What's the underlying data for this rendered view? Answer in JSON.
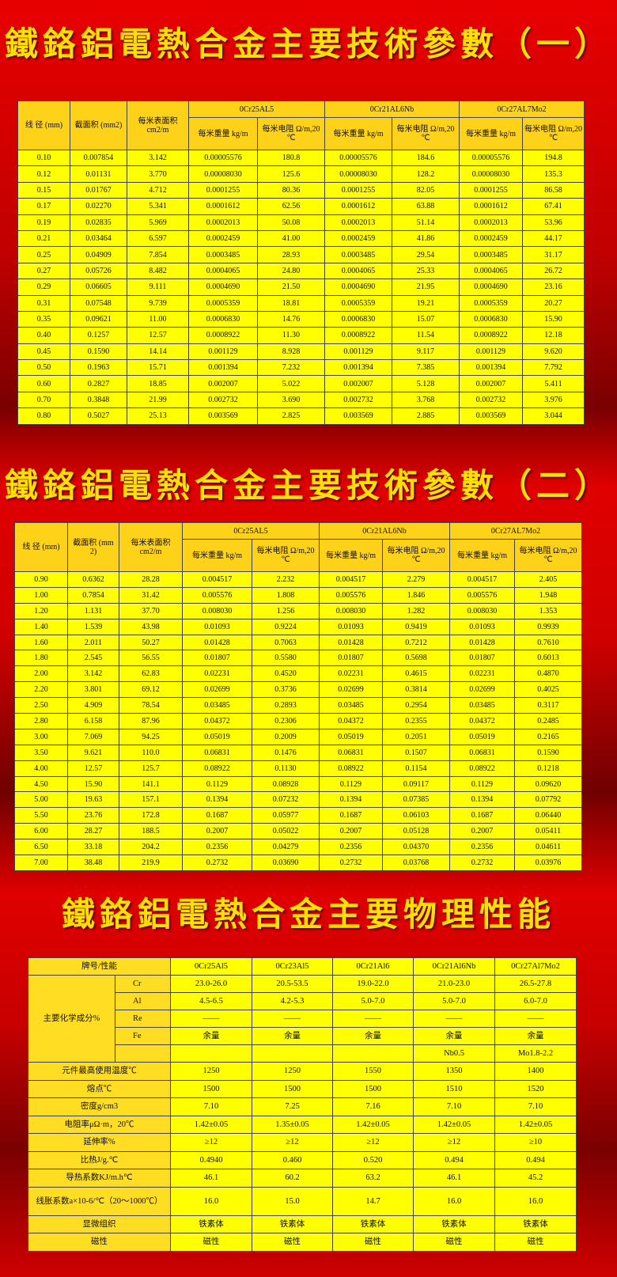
{
  "params1": {
    "title": "鐵鉻鋁電熱合金主要技術參數（一）",
    "columns": {
      "diameter": "线 径 (mm)",
      "area": "截面积 (mm2)",
      "surface": "每米表面积 cm2/m"
    },
    "alloys": [
      {
        "name": "0Cr25AL5",
        "weight": "每米重量 kg/m",
        "resistance": "每米电阻 Ω/m,20 ℃"
      },
      {
        "name": "0Cr21AL6Nb",
        "weight": "每米重量 kg/m",
        "resistance": "每米电阻 Ω/m,20 ℃"
      },
      {
        "name": "0Cr27AL7Mo2",
        "weight": "每米重量 kg/m",
        "resistance": "每米电阻 Ω/m,20 ℃"
      }
    ],
    "rows": [
      [
        "0.10",
        "0.007854",
        "3.142",
        "0.00005576",
        "180.8",
        "0.00005576",
        "184.6",
        "0.00005576",
        "194.8"
      ],
      [
        "0.12",
        "0.01131",
        "3.770",
        "0.00008030",
        "125.6",
        "0.00008030",
        "128.2",
        "0.00008030",
        "135.3"
      ],
      [
        "0.15",
        "0.01767",
        "4.712",
        "0.0001255",
        "80.36",
        "0.0001255",
        "82.05",
        "0.0001255",
        "86.58"
      ],
      [
        "0.17",
        "0.02270",
        "5.341",
        "0.0001612",
        "62.56",
        "0.0001612",
        "63.88",
        "0.0001612",
        "67.41"
      ],
      [
        "0.19",
        "0.02835",
        "5.969",
        "0.0002013",
        "50.08",
        "0.0002013",
        "51.14",
        "0.0002013",
        "53.96"
      ],
      [
        "0.21",
        "0.03464",
        "6.597",
        "0.0002459",
        "41.00",
        "0.0002459",
        "41.86",
        "0.0002459",
        "44.17"
      ],
      [
        "0.25",
        "0.04909",
        "7.854",
        "0.0003485",
        "28.93",
        "0.0003485",
        "29.54",
        "0.0003485",
        "31.17"
      ],
      [
        "0.27",
        "0.05726",
        "8.482",
        "0.0004065",
        "24.80",
        "0.0004065",
        "25.33",
        "0.0004065",
        "26.72"
      ],
      [
        "0.29",
        "0.06605",
        "9.111",
        "0.0004690",
        "21.50",
        "0.0004690",
        "21.95",
        "0.0004690",
        "23.16"
      ],
      [
        "0.31",
        "0.07548",
        "9.739",
        "0.0005359",
        "18.81",
        "0.0005359",
        "19.21",
        "0.0005359",
        "20.27"
      ],
      [
        "0.35",
        "0.09621",
        "11.00",
        "0.0006830",
        "14.76",
        "0.0006830",
        "15.07",
        "0.0006830",
        "15.90"
      ],
      [
        "0.40",
        "0.1257",
        "12.57",
        "0.0008922",
        "11.30",
        "0.0008922",
        "11.54",
        "0.0008922",
        "12.18"
      ],
      [
        "0.45",
        "0.1590",
        "14.14",
        "0.001129",
        "8.928",
        "0.001129",
        "9.117",
        "0.001129",
        "9.620"
      ],
      [
        "0.50",
        "0.1963",
        "15.71",
        "0.001394",
        "7.232",
        "0.001394",
        "7.385",
        "0.001394",
        "7.792"
      ],
      [
        "0.60",
        "0.2827",
        "18.85",
        "0.002007",
        "5.022",
        "0.002007",
        "5.128",
        "0.002007",
        "5.411"
      ],
      [
        "0.70",
        "0.3848",
        "21.99",
        "0.002732",
        "3.690",
        "0.002732",
        "3.768",
        "0.002732",
        "3.976"
      ],
      [
        "0.80",
        "0.5027",
        "25.13",
        "0.003569",
        "2.825",
        "0.003569",
        "2.885",
        "0.003569",
        "3.044"
      ]
    ]
  },
  "params2": {
    "title": "鐵鉻鋁電熱合金主要技術參數（二）",
    "columns": {
      "diameter": "线 径 (mm)",
      "area": "截面积 (mm 2)",
      "surface": "每米表面积 cm2/m"
    },
    "alloys": [
      {
        "name": "0Cr25AL5",
        "weight": "每米重量 kg/m",
        "resistance": "每米电阻 Ω/m,20 ℃"
      },
      {
        "name": "0Cr21AL6Nb",
        "weight": "每米重量 kg/m",
        "resistance": "每米电阻 Ω/m,20 ℃"
      },
      {
        "name": "0Cr27AL7Mo2",
        "weight": "每米重量 kg/m",
        "resistance": "每米电阻 Ω/m,20 ℃"
      }
    ],
    "rows": [
      [
        "0.90",
        "0.6362",
        "28.28",
        "0.004517",
        "2.232",
        "0.004517",
        "2.279",
        "0.004517",
        "2.405"
      ],
      [
        "1.00",
        "0.7854",
        "31.42",
        "0.005576",
        "1.808",
        "0.005576",
        "1.846",
        "0.005576",
        "1.948"
      ],
      [
        "1.20",
        "1.131",
        "37.70",
        "0.008030",
        "1.256",
        "0.008030",
        "1.282",
        "0.008030",
        "1.353"
      ],
      [
        "1.40",
        "1.539",
        "43.98",
        "0.01093",
        "0.9224",
        "0.01093",
        "0.9419",
        "0.01093",
        "0.9939"
      ],
      [
        "1.60",
        "2.011",
        "50.27",
        "0.01428",
        "0.7063",
        "0.01428",
        "0.7212",
        "0.01428",
        "0.7610"
      ],
      [
        "1.80",
        "2.545",
        "56.55",
        "0.01807",
        "0.5580",
        "0.01807",
        "0.5698",
        "0.01807",
        "0.6013"
      ],
      [
        "2.00",
        "3.142",
        "62.83",
        "0.02231",
        "0.4520",
        "0.02231",
        "0.4615",
        "0.02231",
        "0.4870"
      ],
      [
        "2.20",
        "3.801",
        "69.12",
        "0.02699",
        "0.3736",
        "0.02699",
        "0.3814",
        "0.02699",
        "0.4025"
      ],
      [
        "2.50",
        "4.909",
        "78.54",
        "0.03485",
        "0.2893",
        "0.03485",
        "0.2954",
        "0.03485",
        "0.3117"
      ],
      [
        "2.80",
        "6.158",
        "87.96",
        "0.04372",
        "0.2306",
        "0.04372",
        "0.2355",
        "0.04372",
        "0.2485"
      ],
      [
        "3.00",
        "7.069",
        "94.25",
        "0.05019",
        "0.2009",
        "0.05019",
        "0.2051",
        "0.05019",
        "0.2165"
      ],
      [
        "3.50",
        "9.621",
        "110.0",
        "0.06831",
        "0.1476",
        "0.06831",
        "0.1507",
        "0.06831",
        "0.1590"
      ],
      [
        "4.00",
        "12.57",
        "125.7",
        "0.08922",
        "0.1130",
        "0.08922",
        "0.1154",
        "0.08922",
        "0.1218"
      ],
      [
        "4.50",
        "15.90",
        "141.1",
        "0.1129",
        "0.08928",
        "0.1129",
        "0.09117",
        "0.1129",
        "0.09620"
      ],
      [
        "5.00",
        "19.63",
        "157.1",
        "0.1394",
        "0.07232",
        "0.1394",
        "0.07385",
        "0.1394",
        "0.07792"
      ],
      [
        "5.50",
        "23.76",
        "172.8",
        "0.1687",
        "0.05977",
        "0.1687",
        "0.06103",
        "0.1687",
        "0.06440"
      ],
      [
        "6.00",
        "28.27",
        "188.5",
        "0.2007",
        "0.05022",
        "0.2007",
        "0.05128",
        "0.2007",
        "0.05411"
      ],
      [
        "6.50",
        "33.18",
        "204.2",
        "0.2356",
        "0.04279",
        "0.2356",
        "0.04370",
        "0.2356",
        "0.04611"
      ],
      [
        "7.00",
        "38.48",
        "219.9",
        "0.2732",
        "0.03690",
        "0.2732",
        "0.03768",
        "0.2732",
        "0.03976"
      ]
    ]
  },
  "physical": {
    "title": "鐵鉻鋁電熱合金主要物理性能",
    "header": [
      "牌号/性能",
      "0Cr25Al5",
      "0Cr23Al5",
      "0Cr21Al6",
      "0Cr21Al6Nb",
      "0Cr27Al7Mo2"
    ],
    "chem_label": "主要化学成分%",
    "chem_rows": [
      {
        "element": "Cr",
        "values": [
          "23.0-26.0",
          "20.5-53.5",
          "19.0-22.0",
          "21.0-23.0",
          "26.5-27.8"
        ]
      },
      {
        "element": "Al",
        "values": [
          "4.5-6.5",
          "4.2-5.3",
          "5.0-7.0",
          "5.0-7.0",
          "6.0-7.0"
        ]
      },
      {
        "element": "Re",
        "values": [
          "——",
          "——",
          "——",
          "——",
          "——"
        ]
      },
      {
        "element": "Fe",
        "values": [
          "余量",
          "余量",
          "余量",
          "余量",
          "余量"
        ]
      },
      {
        "element": null,
        "values": [
          null,
          null,
          null,
          "Nb0.5",
          "Mo1.8-2.2"
        ]
      }
    ],
    "rows": [
      {
        "label": "元件最高使用温度℃",
        "values": [
          "1250",
          "1250",
          "1550",
          "1350",
          "1400"
        ]
      },
      {
        "label": "熔点℃",
        "values": [
          "1500",
          "1500",
          "1500",
          "1510",
          "1520"
        ]
      },
      {
        "label": "密度g/cm3",
        "values": [
          "7.10",
          "7.25",
          "7.16",
          "7.10",
          "7.10"
        ]
      },
      {
        "label": "电阻率μΩ·m，20℃",
        "values": [
          "1.42±0.05",
          "1.35±0.05",
          "1.42±0.05",
          "1.42±0.05",
          "1.42±0.05"
        ]
      },
      {
        "label": "延伸率%",
        "values": [
          "≥12",
          "≥12",
          "≥12",
          "≥12",
          "≥10"
        ]
      },
      {
        "label": "比热J/g.℃",
        "values": [
          "0.4940",
          "0.460",
          "0.520",
          "0.494",
          "0.494"
        ]
      },
      {
        "label": "导热系数KJ/m.h℃",
        "values": [
          "46.1",
          "60.2",
          "63.2",
          "46.1",
          "45.2"
        ]
      },
      {
        "label": "线胀系数a×10-6/℃（20～1000℃）",
        "values": [
          "16.0",
          "15.0",
          "14.7",
          "16.0",
          "16.0"
        ]
      },
      {
        "label": "显微组织",
        "values": [
          "铁素体",
          "铁素体",
          "铁素体",
          "铁素体",
          "铁素体"
        ]
      },
      {
        "label": "磁性",
        "values": [
          "磁性",
          "磁性",
          "磁性",
          "磁性",
          "磁性"
        ]
      }
    ]
  }
}
